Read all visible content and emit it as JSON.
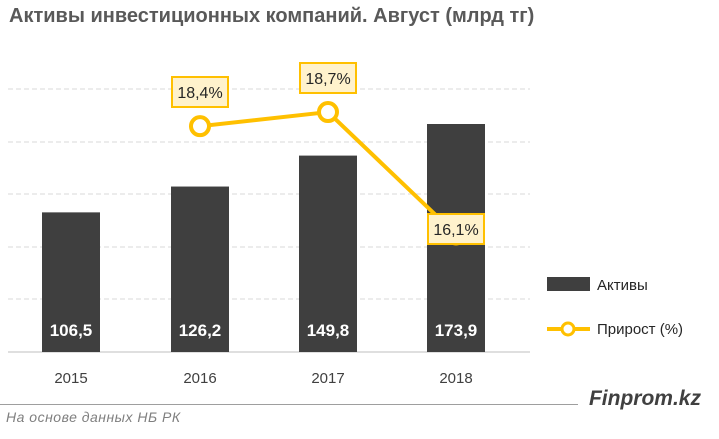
{
  "title": "Активы инвестиционных компаний. Август (млрд тг)",
  "source_note": "На основе данных НБ РК",
  "brand": "Finprom.kz",
  "colors": {
    "bar": "#3f3f3f",
    "line": "#ffc000",
    "label_fill": "#fff2cc",
    "grid": "#d9d9d9",
    "text": "#595959"
  },
  "chart_data": {
    "type": "bar",
    "title": "Активы инвестиционных компаний. Август (млрд тг)",
    "categories": [
      "2015",
      "2016",
      "2017",
      "2018"
    ],
    "series": [
      {
        "name": "Активы",
        "type": "bar",
        "values": [
          106.5,
          126.2,
          149.8,
          173.9
        ],
        "labels": [
          "106,5",
          "126,2",
          "149,8",
          "173,9"
        ],
        "color": "#3f3f3f"
      },
      {
        "name": "Прирост (%)",
        "type": "line",
        "x": [
          "2016",
          "2017",
          "2018"
        ],
        "values": [
          18.4,
          18.7,
          16.1
        ],
        "labels": [
          "18,4%",
          "18,7%",
          "16,1%"
        ],
        "color": "#ffc000"
      }
    ],
    "legend": {
      "position": "right",
      "items": [
        "Активы",
        "Прирост (%)"
      ]
    },
    "grid": true
  }
}
